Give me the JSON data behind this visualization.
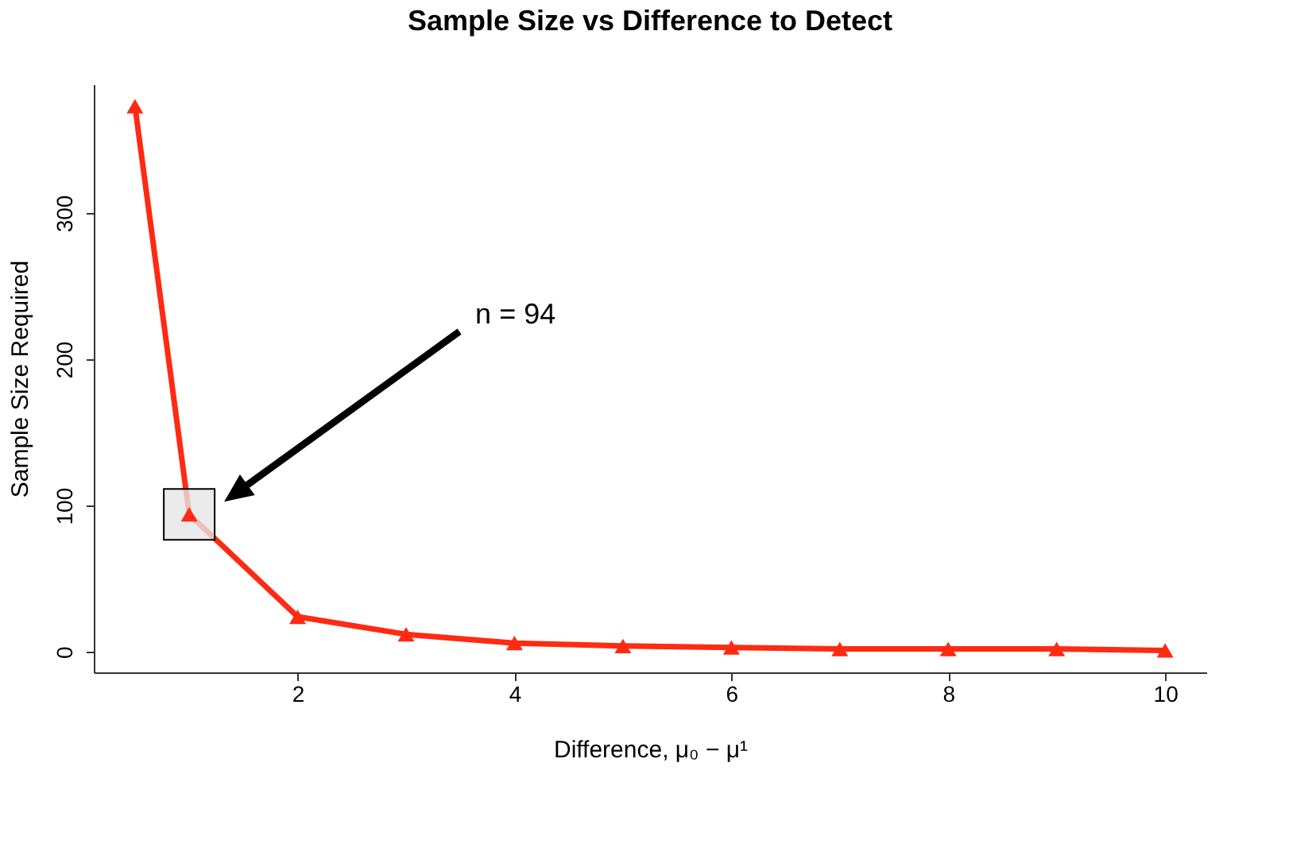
{
  "chart_data": {
    "type": "line",
    "title": "Sample Size vs Difference to Detect",
    "xlabel": "Difference,  μ₀ − μ¹",
    "ylabel": "Sample Size Required",
    "x": [
      0.5,
      1,
      2,
      3,
      4,
      5,
      6,
      7,
      8,
      9,
      10
    ],
    "series": [
      {
        "color": "#ff2a12",
        "values": [
          373,
          94,
          24,
          12,
          6,
          4,
          3,
          2,
          2,
          2,
          1
        ]
      }
    ],
    "xlim": [
      0.12,
      10.38
    ],
    "xticks": [
      2,
      4,
      6,
      8,
      10
    ],
    "ylim": [
      -14,
      388
    ],
    "yticks": [
      0,
      100,
      200,
      300
    ],
    "marker": "triangle",
    "line_style": "solid",
    "grid": false,
    "annotations": [
      "n = 94"
    ]
  }
}
